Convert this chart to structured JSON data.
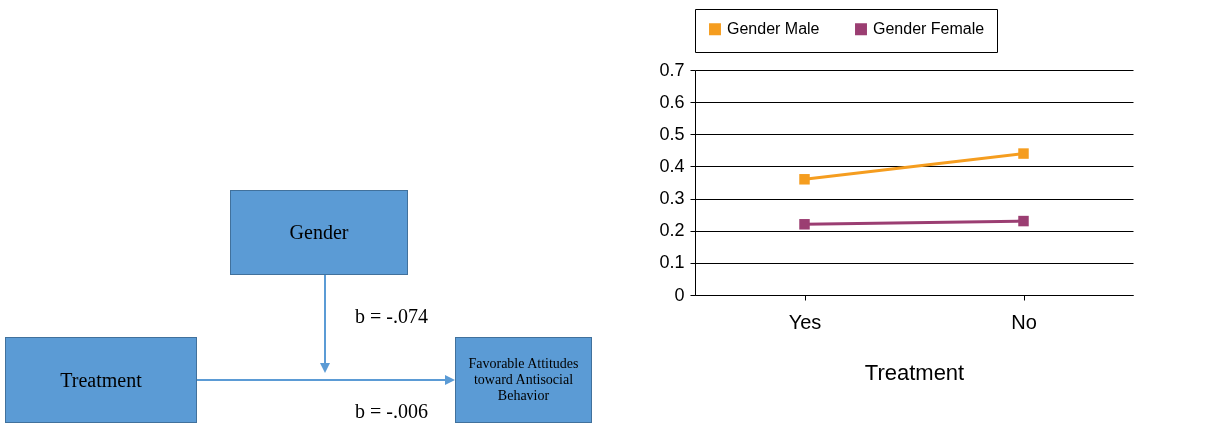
{
  "chart_data": [
    {
      "type": "other",
      "annotations": [
        "Gender",
        "Treatment",
        "Favorable Attitudes toward Antisocial Behavior",
        "b = -.074",
        "b = -.006"
      ]
    },
    {
      "type": "line",
      "xlabel": "Treatment",
      "categories": [
        "Yes",
        "No"
      ],
      "ylim": [
        0,
        0.7
      ],
      "yticks": [
        0,
        0.1,
        0.2,
        0.3,
        0.4,
        0.5,
        0.6,
        0.7
      ],
      "grid": "y",
      "legend": "top",
      "marker": "square",
      "series": [
        {
          "name": "Gender Male",
          "color": "#f59d1f",
          "values": [
            0.36,
            0.44
          ]
        },
        {
          "name": "Gender Female",
          "color": "#9b3e72",
          "values": [
            0.22,
            0.23
          ]
        }
      ]
    }
  ]
}
